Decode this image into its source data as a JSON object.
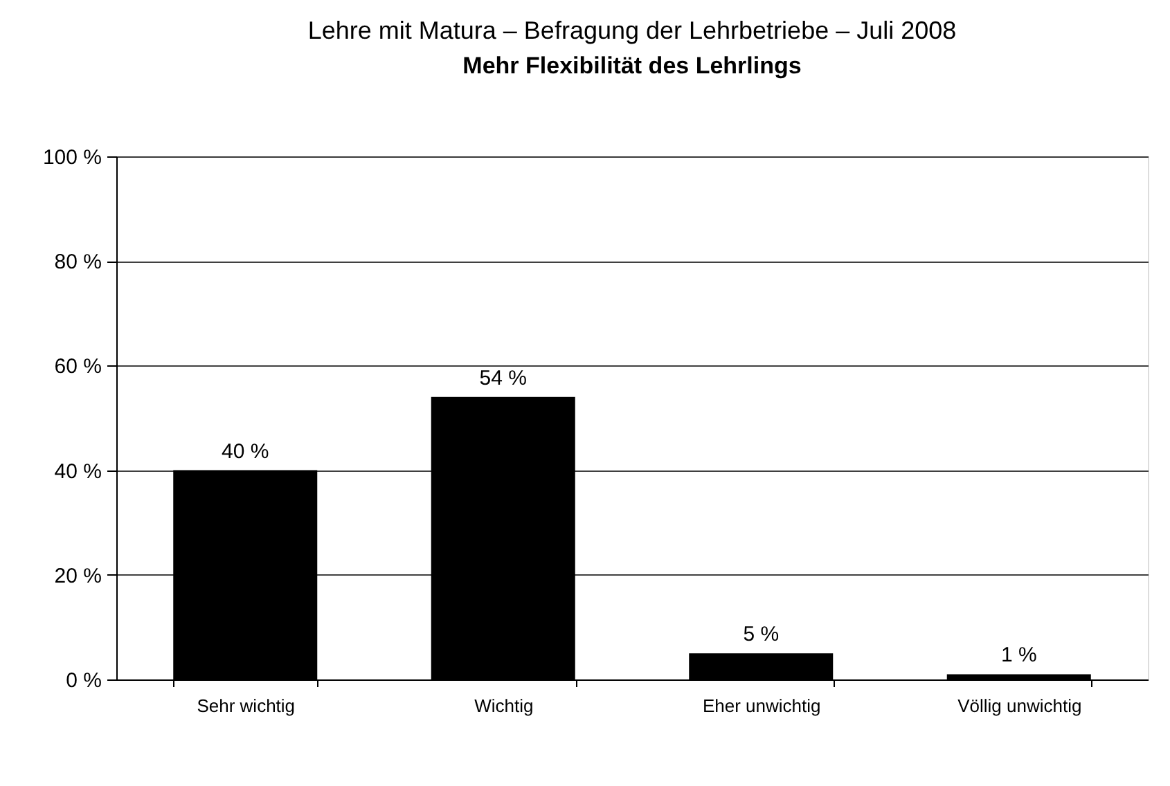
{
  "chart_data": {
    "type": "bar",
    "title": "Lehre mit Matura – Befragung der Lehrbetriebe – Juli 2008",
    "subtitle": "Mehr Flexibilität des Lehrlings",
    "categories": [
      "Sehr wichtig",
      "Wichtig",
      "Eher unwichtig",
      "Völlig unwichtig"
    ],
    "values": [
      40,
      54,
      5,
      1
    ],
    "color": "#000000",
    "value_labels": [
      "40 %",
      "54 %",
      "5 %",
      "1 %"
    ],
    "ylim": [
      0,
      100
    ],
    "yticks": [
      {
        "value": 0,
        "label": "0 %"
      },
      {
        "value": 20,
        "label": "20 %"
      },
      {
        "value": 40,
        "label": "40 %"
      },
      {
        "value": 60,
        "label": "60 %"
      },
      {
        "value": 80,
        "label": "80 %"
      },
      {
        "value": 100,
        "label": "100 %"
      }
    ],
    "grid": "y"
  }
}
